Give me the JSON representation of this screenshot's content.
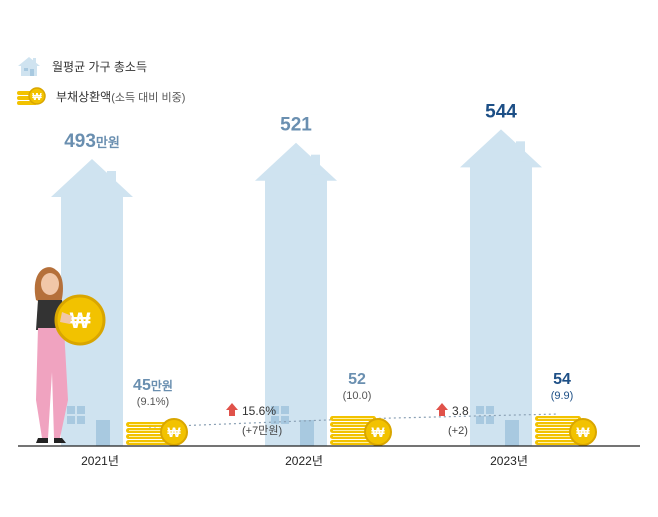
{
  "legend": {
    "income_label": "월평균 가구 총소득",
    "debt_label": "부채상환액",
    "debt_sub": "(소득 대비 비중)"
  },
  "colors": {
    "house": "#cfe3f0",
    "house_window": "#a8c9e0",
    "coin": "#f2c200",
    "coin_dark": "#d9a600",
    "coin_stripe": "#fff1a6",
    "year_income_2021": "#6a8fb0",
    "value_dark": "#1d4f86",
    "arrow": "#e0524a",
    "axis": "#222222"
  },
  "chart_data": {
    "type": "bar",
    "categories": [
      "2021년",
      "2022년",
      "2023년"
    ],
    "series": [
      {
        "name": "월평균 가구 총소득",
        "values": [
          493,
          521,
          544
        ],
        "unit": "만원"
      },
      {
        "name": "부채상환액",
        "values": [
          45,
          52,
          54
        ],
        "unit": "만원"
      }
    ],
    "income_labels": [
      {
        "value": "493",
        "unit": "만원"
      },
      {
        "value": "521",
        "unit": ""
      },
      {
        "value": "544",
        "unit": ""
      }
    ],
    "debt_labels": [
      {
        "value": "45",
        "unit": "만원",
        "ratio": "(9.1%)"
      },
      {
        "value": "52",
        "unit": "",
        "ratio": "(10.0)"
      },
      {
        "value": "54",
        "unit": "",
        "ratio": "(9.9)"
      }
    ],
    "changes": [
      {
        "pct": "15.6%",
        "abs": "(+7만원)"
      },
      {
        "pct": "3.8",
        "abs": "(+2)"
      }
    ],
    "ylim": [
      0,
      560
    ],
    "title": "",
    "xlabel": "",
    "ylabel": ""
  }
}
